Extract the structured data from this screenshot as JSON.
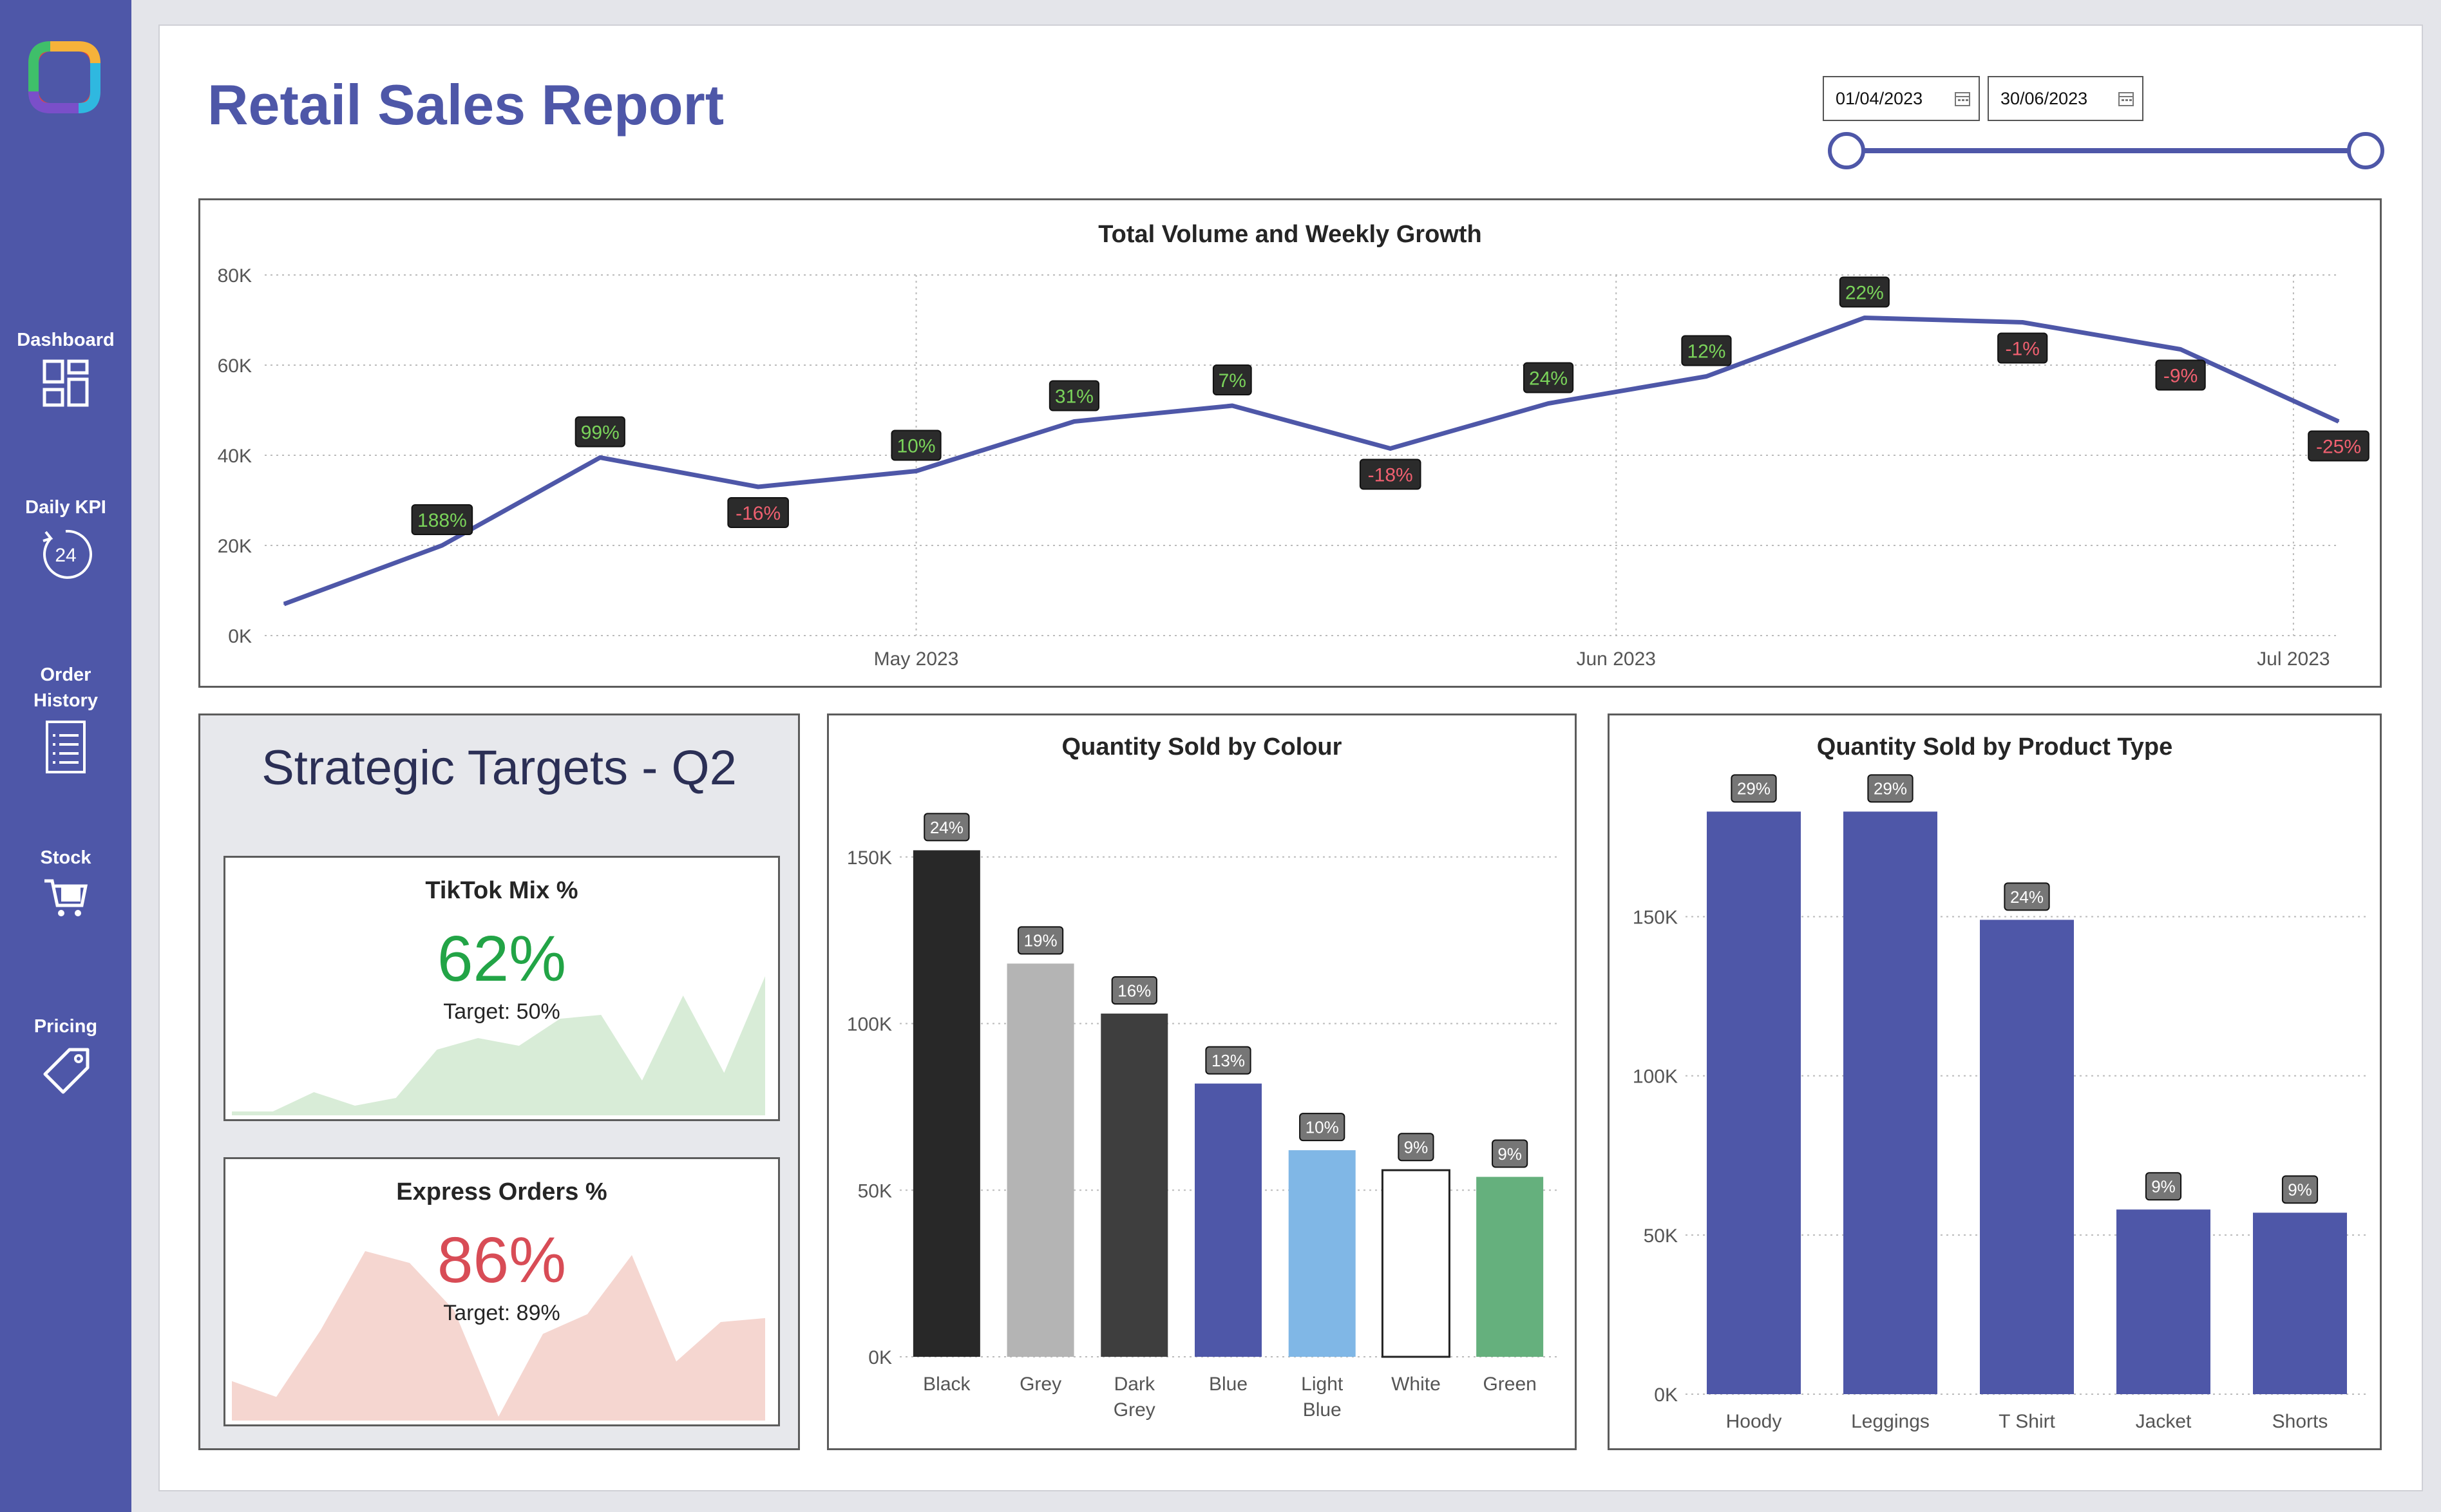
{
  "app": {
    "title": "Retail Sales Report"
  },
  "sidebar": {
    "items": [
      {
        "label": "Dashboard",
        "icon": "dashboard-grid-icon"
      },
      {
        "label": "Daily KPI",
        "icon": "clock-24-icon"
      },
      {
        "label": "Order History",
        "icon": "document-list-icon"
      },
      {
        "label": "Stock",
        "icon": "shopping-cart-icon"
      },
      {
        "label": "Pricing",
        "icon": "price-tag-icon"
      }
    ]
  },
  "date_range": {
    "start": "01/04/2023",
    "end": "30/06/2023"
  },
  "colors": {
    "accent": "#4e57a8",
    "positive": "#7ad35a",
    "negative": "#f06070",
    "label_bg": "#2b2b2b"
  },
  "line_chart": {
    "title": "Total Volume and Weekly Growth",
    "chart_data": {
      "type": "line",
      "x": [
        "2023-04-03",
        "2023-04-10",
        "2023-04-17",
        "2023-04-24",
        "2023-05-01",
        "2023-05-08",
        "2023-05-15",
        "2023-05-22",
        "2023-05-29",
        "2023-06-05",
        "2023-06-12",
        "2023-06-19",
        "2023-06-26",
        "2023-07-03"
      ],
      "values": [
        7000,
        20000,
        39500,
        33000,
        36500,
        47500,
        51000,
        41500,
        51500,
        57500,
        70500,
        69500,
        63500,
        47500
      ],
      "growth_labels": [
        "",
        "188%",
        "99%",
        "-16%",
        "10%",
        "31%",
        "7%",
        "-18%",
        "24%",
        "12%",
        "22%",
        "-1%",
        "-9%",
        "-25%"
      ],
      "y_ticks": [
        "0K",
        "20K",
        "40K",
        "60K",
        "80K"
      ],
      "x_ticks": [
        "May 2023",
        "Jun 2023",
        "Jul 2023"
      ],
      "ylim": [
        0,
        80000
      ],
      "grid": true
    }
  },
  "targets": {
    "title": "Strategic Targets - Q2",
    "tiktok": {
      "title": "TikTok Mix %",
      "value": "62%",
      "target": "Target: 50%",
      "color": "#22a446",
      "fill": "#d8ecd7",
      "spark": [
        2,
        2,
        12,
        5,
        9,
        34,
        40,
        36,
        50,
        52,
        18,
        62,
        22,
        72
      ]
    },
    "express": {
      "title": "Express Orders %",
      "value": "86%",
      "target": "Target: 89%",
      "color": "#d84c56",
      "fill": "#f5d6d0",
      "spark": [
        20,
        12,
        46,
        86,
        80,
        56,
        2,
        44,
        54,
        84,
        30,
        50,
        52
      ]
    }
  },
  "colour_chart": {
    "title": "Quantity Sold by Colour",
    "chart_data": {
      "type": "bar",
      "categories": [
        "Black",
        "Grey",
        "Dark Grey",
        "Blue",
        "Light Blue",
        "White",
        "Green"
      ],
      "values": [
        152000,
        118000,
        103000,
        82000,
        62000,
        56000,
        54000
      ],
      "pct_labels": [
        "24%",
        "19%",
        "16%",
        "13%",
        "10%",
        "9%",
        "9%"
      ],
      "colors": [
        "#282828",
        "#b4b4b4",
        "#3e3e3e",
        "#4e57a8",
        "#80b7e6",
        "#ffffff",
        "#65b07d"
      ],
      "y_ticks": [
        "0K",
        "50K",
        "100K",
        "150K"
      ],
      "ylim": [
        0,
        160000
      ]
    }
  },
  "product_chart": {
    "title": "Quantity Sold by Product Type",
    "chart_data": {
      "type": "bar",
      "categories": [
        "Hoody",
        "Leggings",
        "T Shirt",
        "Jacket",
        "Shorts"
      ],
      "values": [
        183000,
        183000,
        149000,
        58000,
        57000
      ],
      "pct_labels": [
        "29%",
        "29%",
        "24%",
        "9%",
        "9%"
      ],
      "y_ticks": [
        "0K",
        "50K",
        "100K",
        "150K"
      ],
      "ylim": [
        0,
        195000
      ]
    }
  }
}
